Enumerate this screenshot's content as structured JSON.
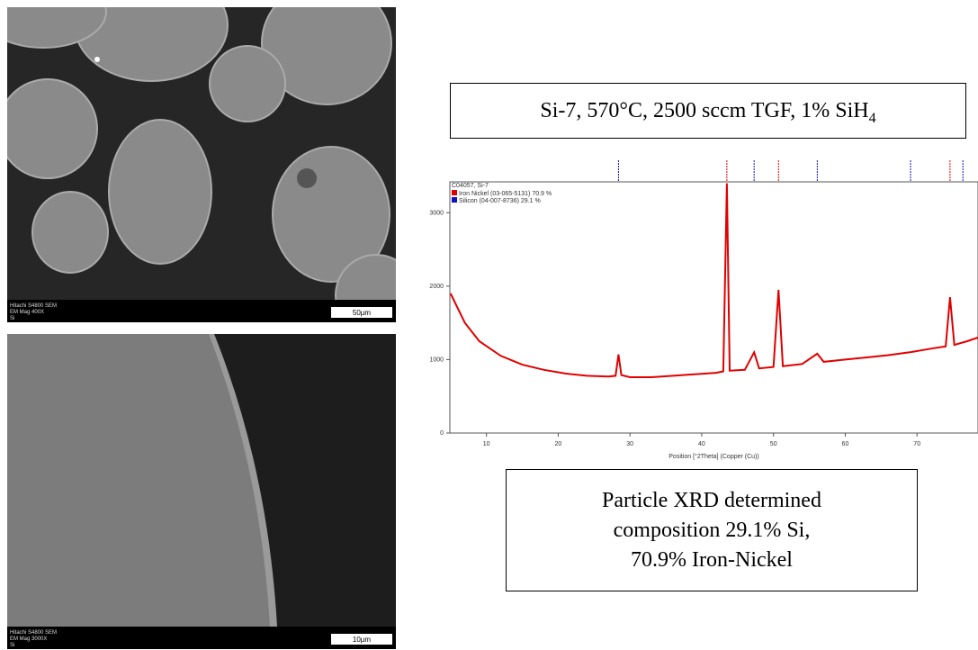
{
  "sem_images": [
    {
      "instrument": "Hitachi S4800 SEM",
      "magnification": "EM Mag 400X",
      "sample": "Si",
      "scale": "50µm"
    },
    {
      "instrument": "Hitachi S4800 SEM",
      "magnification": "EM Mag 3000X",
      "sample": "Si",
      "scale": "10µm"
    }
  ],
  "top_caption": {
    "text": "Si-7, 570°C, 2500 sccm TGF, 1% SiH",
    "subscript": "4"
  },
  "bottom_caption": {
    "lines": [
      "Particle XRD determined",
      "composition 29.1% Si,",
      "70.9% Iron-Nickel"
    ]
  },
  "chart_data": {
    "type": "line",
    "title": "C04057, Si-7",
    "x_label": "Position [°2Theta] (Copper (Cu))",
    "x": [
      5,
      7,
      9,
      12,
      15,
      18,
      21,
      24,
      27,
      28,
      28.4,
      28.8,
      30,
      33,
      36,
      39,
      42,
      43,
      43.5,
      43.9,
      46,
      47.3,
      48,
      50,
      50.7,
      51.3,
      54,
      56.1,
      57,
      60,
      63,
      66,
      69,
      72,
      74,
      74.6,
      75.2,
      77,
      78.5
    ],
    "values": [
      1900,
      1500,
      1250,
      1050,
      930,
      860,
      810,
      780,
      770,
      780,
      1070,
      790,
      760,
      760,
      780,
      800,
      820,
      840,
      3400,
      850,
      860,
      1100,
      880,
      900,
      1950,
      910,
      940,
      1080,
      970,
      1000,
      1030,
      1060,
      1100,
      1150,
      1180,
      1850,
      1200,
      1250,
      1300
    ],
    "color": "#e00000",
    "legend": [
      {
        "name": "Iron Nickel (03-065-5131) 70.9 %",
        "color": "#e00000",
        "peaks": [
          43.5,
          50.7,
          74.6
        ]
      },
      {
        "name": "Silicon (04-007-8736) 29.1 %",
        "color": "#1010c0",
        "peaks": [
          28.4,
          47.3,
          56.1,
          69.1,
          76.4
        ]
      }
    ],
    "xlim": [
      4.9,
      78.5
    ],
    "ylim": [
      0,
      3420
    ],
    "xticks": [
      10,
      20,
      30,
      40,
      50,
      60,
      70
    ],
    "yticks": [
      0,
      1000,
      2000,
      3000
    ]
  }
}
